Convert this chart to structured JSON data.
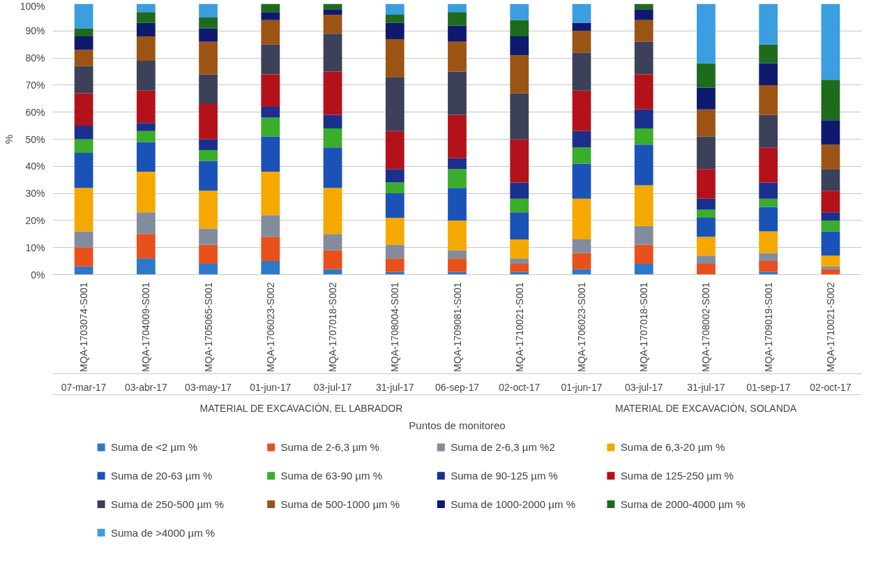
{
  "chart_data": {
    "type": "bar",
    "stacked": true,
    "xlabel": "Puntos de monitoreo",
    "ylabel": "%",
    "categories": [
      "MQA-1703074-S001",
      "MQA-1704009-S001",
      "MQA-1705065-S001",
      "MQA-1706023-S002",
      "MQA-1707018-S002",
      "MQA-1708004-S001",
      "MQA-1709081-S001",
      "MQA-1710021-S001",
      "MQA-1706023-S001",
      "MQA-1707018-S001",
      "MQA-1708002-S001",
      "MQA-1709019-S001",
      "MQA-1710021-S002"
    ],
    "series": [
      {
        "name": "Suma de <2  µm %",
        "color": "#2e78c8",
        "values": [
          3,
          6,
          4,
          5,
          2,
          1,
          1,
          1,
          2,
          4,
          0,
          1,
          0
        ]
      },
      {
        "name": "Suma de 2-6,3  µm %",
        "color": "#e8501c",
        "values": [
          7,
          9,
          7,
          9,
          7,
          5,
          5,
          3,
          6,
          7,
          4,
          4,
          2
        ]
      },
      {
        "name": "Suma de 2-6,3  µm %2",
        "color": "#838c9c",
        "values": [
          6,
          8,
          6,
          8,
          6,
          5,
          3,
          2,
          5,
          7,
          3,
          3,
          1
        ]
      },
      {
        "name": "Suma de 6,3-20  µm %",
        "color": "#f5a800",
        "values": [
          16,
          15,
          14,
          16,
          17,
          10,
          11,
          7,
          15,
          15,
          7,
          8,
          4
        ]
      },
      {
        "name": "Suma de 20-63  µm %",
        "color": "#1a52b8",
        "values": [
          13,
          11,
          11,
          13,
          15,
          9,
          12,
          10,
          13,
          15,
          7,
          9,
          9
        ]
      },
      {
        "name": "Suma de 63-90  µm %",
        "color": "#3aad2a",
        "values": [
          5,
          4,
          4,
          7,
          7,
          4,
          7,
          5,
          6,
          6,
          3,
          3,
          4
        ]
      },
      {
        "name": "Suma de 90-125  µm %",
        "color": "#1a308c",
        "values": [
          5,
          3,
          4,
          4,
          5,
          5,
          4,
          6,
          6,
          7,
          4,
          6,
          3
        ]
      },
      {
        "name": "Suma de 125-250  µm %",
        "color": "#b3121a",
        "values": [
          12,
          12,
          13,
          12,
          16,
          14,
          16,
          16,
          15,
          13,
          11,
          13,
          8
        ]
      },
      {
        "name": "Suma de 250-500  µm %",
        "color": "#3c4058",
        "values": [
          10,
          11,
          11,
          11,
          14,
          20,
          16,
          17,
          14,
          12,
          12,
          12,
          8
        ]
      },
      {
        "name": "Suma de 500-1000  µm %",
        "color": "#9c5414",
        "values": [
          6,
          9,
          12,
          9,
          7,
          14,
          11,
          14,
          8,
          8,
          10,
          11,
          9
        ]
      },
      {
        "name": "Suma de 1000-2000  µm %",
        "color": "#0f1a6e",
        "values": [
          5,
          5,
          5,
          3,
          2,
          6,
          6,
          7,
          3,
          4,
          8,
          8,
          9
        ]
      },
      {
        "name": "Suma de 2000-4000  µm %",
        "color": "#1e6b1e",
        "values": [
          3,
          4,
          4,
          3,
          2,
          3,
          5,
          6,
          0,
          2,
          9,
          7,
          15
        ]
      },
      {
        "name": "Suma de >4000  µm %",
        "color": "#3a9ee0",
        "values": [
          9,
          3,
          5,
          0,
          0,
          4,
          3,
          6,
          7,
          0,
          22,
          15,
          28
        ]
      }
    ],
    "ylim": [
      0,
      100
    ],
    "yticks": [
      {
        "value": 0,
        "label": "0%"
      },
      {
        "value": 10,
        "label": "10%"
      },
      {
        "value": 20,
        "label": "20%"
      },
      {
        "value": 30,
        "label": "30%"
      },
      {
        "value": 40,
        "label": "40%"
      },
      {
        "value": 50,
        "label": "50%"
      },
      {
        "value": 60,
        "label": "60%"
      },
      {
        "value": 70,
        "label": "70%"
      },
      {
        "value": 80,
        "label": "80%"
      },
      {
        "value": 90,
        "label": "90%"
      },
      {
        "value": 100,
        "label": "100%"
      }
    ],
    "grid": "y",
    "legend": "bottom",
    "annotations": [
      "07-mar-17",
      "03-abr-17",
      "03-may-17",
      "01-jun-17",
      "03-jul-17",
      "31-jul-17",
      "06-sep-17",
      "02-oct-17",
      "01-jun-17",
      "03-jul-17",
      "31-jul-17",
      "01-sep-17",
      "02-oct-17",
      "MATERIAL DE EXCAVACIÓN, EL LABRADOR",
      "MATERIAL DE EXCAVACIÓN, SOLANDA"
    ]
  }
}
